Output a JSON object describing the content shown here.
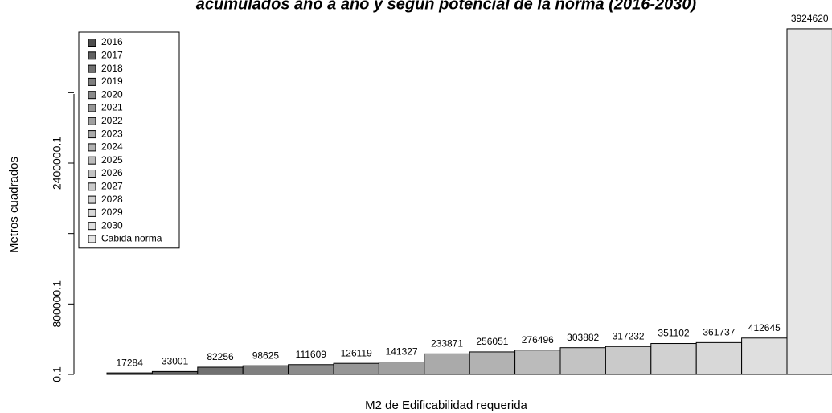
{
  "chart_data": {
    "type": "bar",
    "title": "acumulados año a año y según potencial de la norma (2016-2030)",
    "xlabel": "M2 de Edificabilidad requerida",
    "ylabel": "Metros cuadrados",
    "categories": [
      "2016",
      "2017",
      "2018",
      "2019",
      "2020",
      "2021",
      "2022",
      "2023",
      "2024",
      "2025",
      "2026",
      "2027",
      "2028",
      "2029",
      "2030",
      "Cabida norma"
    ],
    "values": [
      17284,
      33001,
      82256,
      98625,
      111609,
      126119,
      141327,
      233871,
      256051,
      276496,
      303882,
      317232,
      351102,
      361737,
      412645,
      3924620
    ],
    "colors": [
      "#4d4d4d",
      "#616161",
      "#717171",
      "#7f7f7f",
      "#8b8b8b",
      "#969696",
      "#a0a0a0",
      "#aaaaaa",
      "#b2b2b2",
      "#bbbbbb",
      "#c3c3c3",
      "#cacaca",
      "#d1d1d1",
      "#d8d8d8",
      "#dfdfdf",
      "#e6e6e6"
    ],
    "ylim": [
      0.1,
      4000000
    ],
    "yticks": [
      0.1,
      800000.1,
      2400000.1
    ],
    "minor_yticks": [
      1600000.1,
      3200000.1
    ],
    "legend": "topleft"
  }
}
